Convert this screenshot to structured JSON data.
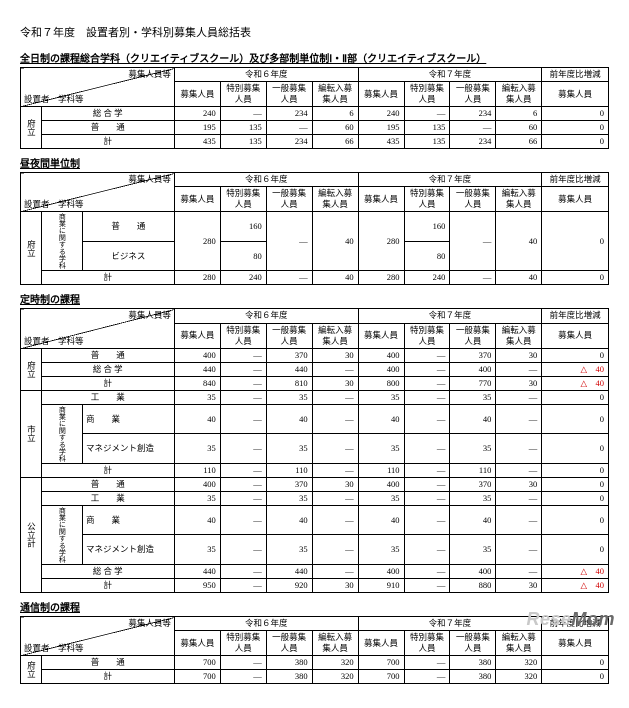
{
  "page_title": "令和７年度　設置者別・学科別募集人員総括表",
  "year6": "令和６年度",
  "year7": "令和７年度",
  "zengen": "前年度比増減",
  "colA": "募集人員",
  "colB": "特別募集人員",
  "colC": "一般募集人員",
  "colD": "編転入募集人員",
  "h_set": "設置者",
  "h_gak": "学科等",
  "h_bos": "募集人員等",
  "fu": "府立",
  "shi": "市立",
  "kou": "公立計",
  "kei": "計",
  "sogogaku": "総 合 学",
  "futsu": "普　　通",
  "shokei": "商業に関する学科",
  "biz": "ビジネス",
  "kogyo": "工　　業",
  "shogyo": "商　　業",
  "mgmt": "マネジメント創造",
  "tri": "△",
  "s1": {
    "title": "全日制の課程総合学科（クリエイティブスクール）及び多部制単位制Ⅰ・Ⅱ部（クリエイティブスクール）",
    "r1": [
      "240",
      "―",
      "234",
      "6",
      "240",
      "―",
      "234",
      "6",
      "0"
    ],
    "r2": [
      "195",
      "135",
      "―",
      "60",
      "195",
      "135",
      "―",
      "60",
      "0"
    ],
    "r3": [
      "435",
      "135",
      "234",
      "66",
      "435",
      "135",
      "234",
      "66",
      "0"
    ]
  },
  "s2": {
    "title": "昼夜間単位制",
    "r1a": "160",
    "r1b": "160",
    "r2": [
      "80",
      "―",
      "",
      "80",
      "―",
      "",
      ""
    ],
    "r3": [
      "280",
      "240",
      "―",
      "40",
      "280",
      "240",
      "―",
      "40",
      "0"
    ],
    "fuA": "280",
    "fuB": "―",
    "fuC": "",
    "fuD": "40",
    "fuE": "280",
    "fuF": "―",
    "fuG": "",
    "fuH": "40",
    "fuZ": "0"
  },
  "s3": {
    "title": "定時制の課程",
    "fu": [
      [
        "普　　通",
        "400",
        "―",
        "370",
        "30",
        "400",
        "―",
        "370",
        "30",
        "",
        "0"
      ],
      [
        "総 合 学",
        "440",
        "―",
        "440",
        "―",
        "400",
        "―",
        "400",
        "―",
        "△",
        "40"
      ],
      [
        "計",
        "840",
        "―",
        "810",
        "30",
        "800",
        "―",
        "770",
        "30",
        "△",
        "40"
      ]
    ],
    "shi": [
      [
        "工　　業",
        "35",
        "―",
        "35",
        "―",
        "35",
        "―",
        "35",
        "―",
        "",
        "0"
      ],
      [
        "商　　業",
        "40",
        "―",
        "40",
        "―",
        "40",
        "―",
        "40",
        "―",
        "",
        "0"
      ],
      [
        "マネジメント創造",
        "35",
        "―",
        "35",
        "―",
        "35",
        "―",
        "35",
        "―",
        "",
        "0"
      ],
      [
        "計",
        "110",
        "―",
        "110",
        "―",
        "110",
        "―",
        "110",
        "―",
        "",
        "0"
      ]
    ],
    "kou": [
      [
        "普　　通",
        "400",
        "―",
        "370",
        "30",
        "400",
        "―",
        "370",
        "30",
        "",
        "0"
      ],
      [
        "工　　業",
        "35",
        "―",
        "35",
        "―",
        "35",
        "―",
        "35",
        "―",
        "",
        "0"
      ],
      [
        "商　　業",
        "40",
        "―",
        "40",
        "―",
        "40",
        "―",
        "40",
        "―",
        "",
        "0"
      ],
      [
        "マネジメント創造",
        "35",
        "―",
        "35",
        "―",
        "35",
        "―",
        "35",
        "―",
        "",
        "0"
      ],
      [
        "総 合 学",
        "440",
        "―",
        "440",
        "―",
        "400",
        "―",
        "400",
        "―",
        "△",
        "40"
      ],
      [
        "計",
        "950",
        "―",
        "920",
        "30",
        "910",
        "―",
        "880",
        "30",
        "△",
        "40"
      ]
    ]
  },
  "s4": {
    "title": "通信制の課程",
    "r1": [
      "700",
      "―",
      "380",
      "320",
      "700",
      "―",
      "380",
      "320",
      "0"
    ],
    "r2": [
      "700",
      "―",
      "380",
      "320",
      "700",
      "―",
      "380",
      "320",
      "0"
    ]
  },
  "wm1": "Rese",
  "wm2": "Mom"
}
